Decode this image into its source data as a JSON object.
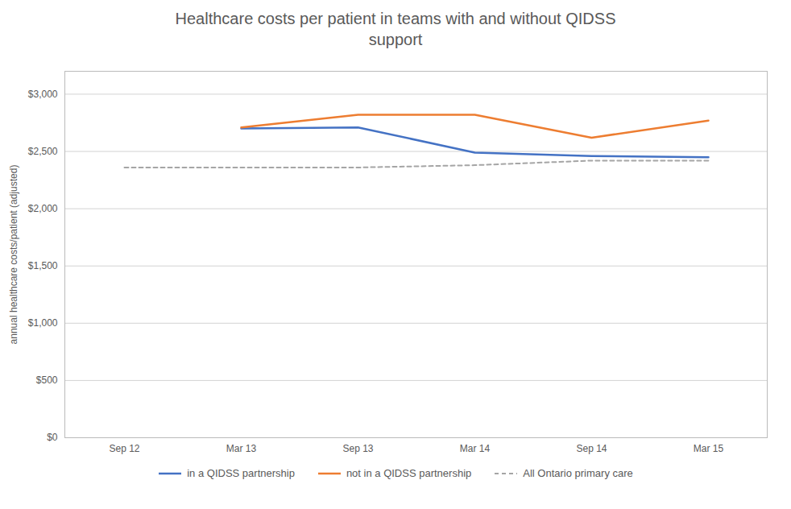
{
  "chart_data": {
    "type": "line",
    "title": "Healthcare costs per patient in teams with and without QIDSS\nsupport",
    "y_label": "annual healthcare costs/patient (adjusted)",
    "categories": [
      "Sep 12",
      "Mar 13",
      "Sep 13",
      "Mar 14",
      "Sep 14",
      "Mar 15"
    ],
    "series": [
      {
        "name": "in a QIDSS partnership",
        "color": "#4472C4",
        "values": [
          null,
          2700,
          2710,
          2490,
          2460,
          2450
        ]
      },
      {
        "name": "not in a QIDSS partnership",
        "color": "#ED7D31",
        "values": [
          null,
          2710,
          2820,
          2820,
          2620,
          2770
        ]
      },
      {
        "name": "All Ontario primary care",
        "color": "#A5A5A5",
        "line_style": "dashed",
        "values": [
          2360,
          2360,
          2360,
          2380,
          2420,
          2420
        ]
      }
    ],
    "ylim": [
      0,
      3200
    ],
    "yticks": [
      {
        "value": 0,
        "label": "$0"
      },
      {
        "value": 500,
        "label": "$500"
      },
      {
        "value": 1000,
        "label": "$1,000"
      },
      {
        "value": 1500,
        "label": "$1,500"
      },
      {
        "value": 2000,
        "label": "$2,000"
      },
      {
        "value": 2500,
        "label": "$2,500"
      },
      {
        "value": 3000,
        "label": "$3,000"
      }
    ],
    "grid": true,
    "legend": "bottom"
  }
}
